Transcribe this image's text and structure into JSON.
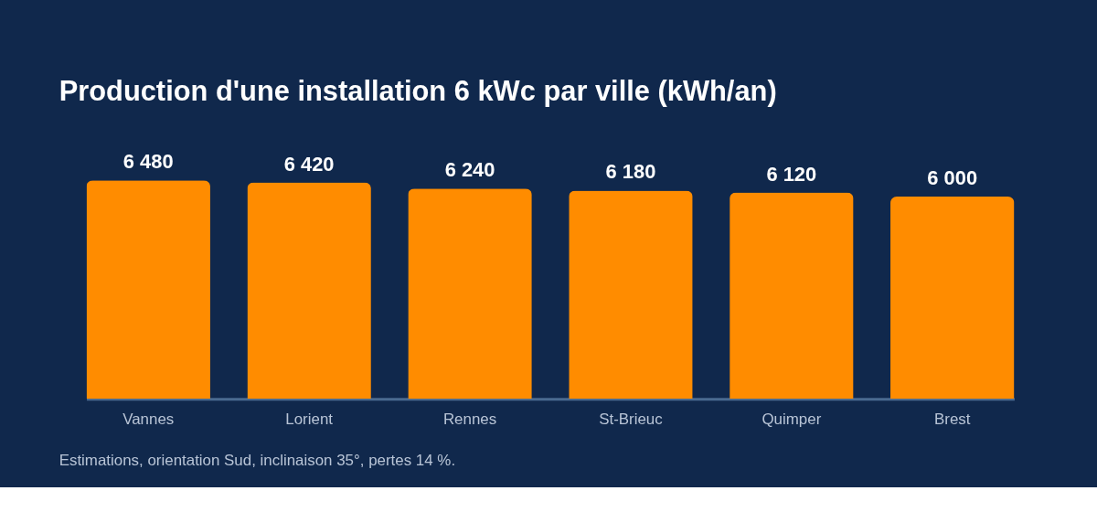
{
  "chart_data": {
    "type": "bar",
    "title": "Production d'une installation 6 kWc par ville (kWh/an)",
    "categories": [
      "Vannes",
      "Lorient",
      "Rennes",
      "St-Brieuc",
      "Quimper",
      "Brest"
    ],
    "values": [
      6480,
      6420,
      6240,
      6180,
      6120,
      6000
    ],
    "color": "#ff8c00",
    "data_labels": true,
    "grid": false,
    "annotations": [
      "Estimations, orientation Sud, inclinaison 35°, pertes 14 %."
    ]
  }
}
